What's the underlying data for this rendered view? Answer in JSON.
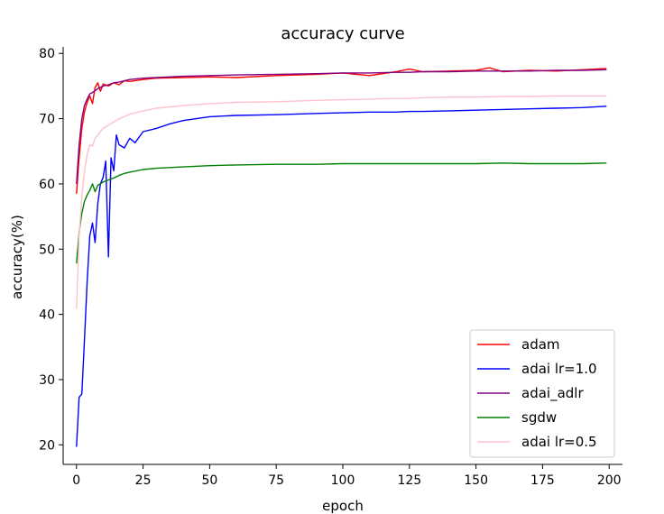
{
  "chart_data": {
    "type": "line",
    "title": "accuracy curve",
    "xlabel": "epoch",
    "ylabel": "accuracy(%)",
    "xlim": [
      -5,
      205
    ],
    "ylim": [
      17,
      81
    ],
    "xticks": [
      0,
      25,
      50,
      75,
      100,
      125,
      150,
      175,
      200
    ],
    "yticks": [
      20,
      30,
      40,
      50,
      60,
      70,
      80
    ],
    "legend_position": "bottom-right",
    "grid": false,
    "series": [
      {
        "name": "adam",
        "color": "#ff0000",
        "x": [
          0,
          1,
          2,
          3,
          4,
          5,
          6,
          7,
          8,
          9,
          10,
          12,
          14,
          16,
          18,
          20,
          25,
          30,
          40,
          50,
          60,
          75,
          90,
          100,
          110,
          120,
          125,
          130,
          140,
          150,
          155,
          160,
          170,
          180,
          190,
          199
        ],
        "y": [
          58.5,
          64.0,
          68.5,
          71.0,
          72.5,
          73.5,
          72.3,
          74.8,
          75.5,
          74.2,
          75.3,
          75.0,
          75.5,
          75.2,
          75.8,
          75.7,
          76.0,
          76.2,
          76.3,
          76.4,
          76.3,
          76.6,
          76.8,
          77.0,
          76.6,
          77.2,
          77.6,
          77.2,
          77.3,
          77.4,
          77.8,
          77.2,
          77.4,
          77.3,
          77.5,
          77.7
        ]
      },
      {
        "name": "adai lr=1.0",
        "color": "#0000ff",
        "x": [
          0,
          1,
          2,
          3,
          4,
          5,
          6,
          7,
          8,
          9,
          10,
          11,
          12,
          13,
          14,
          15,
          16,
          18,
          20,
          22,
          25,
          30,
          35,
          40,
          45,
          50,
          60,
          75,
          90,
          100,
          110,
          120,
          125,
          130,
          140,
          150,
          160,
          170,
          180,
          190,
          199
        ],
        "y": [
          19.7,
          27.3,
          27.8,
          36.0,
          45.0,
          52.0,
          54.0,
          51.0,
          57.0,
          60.0,
          61.0,
          63.5,
          48.8,
          64.0,
          62.0,
          67.5,
          66.0,
          65.5,
          67.0,
          66.3,
          68.0,
          68.5,
          69.2,
          69.7,
          70.0,
          70.3,
          70.5,
          70.6,
          70.8,
          70.9,
          71.0,
          71.0,
          71.1,
          71.1,
          71.2,
          71.3,
          71.4,
          71.5,
          71.6,
          71.7,
          71.9
        ]
      },
      {
        "name": "adai_adlr",
        "color": "#800080",
        "x": [
          0,
          1,
          2,
          3,
          4,
          5,
          6,
          7,
          8,
          9,
          10,
          12,
          14,
          16,
          18,
          20,
          25,
          30,
          40,
          50,
          60,
          75,
          90,
          100,
          110,
          120,
          125,
          130,
          140,
          150,
          160,
          170,
          180,
          190,
          199
        ],
        "y": [
          60.0,
          66.0,
          70.0,
          72.0,
          73.0,
          73.8,
          74.0,
          74.3,
          74.6,
          74.8,
          75.0,
          75.2,
          75.5,
          75.6,
          75.8,
          76.0,
          76.2,
          76.3,
          76.5,
          76.6,
          76.7,
          76.8,
          76.9,
          77.0,
          77.0,
          77.1,
          77.1,
          77.2,
          77.2,
          77.3,
          77.3,
          77.3,
          77.4,
          77.4,
          77.5
        ]
      },
      {
        "name": "sgdw",
        "color": "#008000",
        "x": [
          0,
          1,
          2,
          3,
          4,
          5,
          6,
          7,
          8,
          9,
          10,
          12,
          14,
          16,
          18,
          20,
          25,
          30,
          40,
          50,
          60,
          75,
          90,
          100,
          110,
          120,
          125,
          130,
          140,
          150,
          160,
          170,
          180,
          190,
          199
        ],
        "y": [
          47.8,
          52.5,
          55.5,
          57.3,
          58.3,
          59.0,
          60.0,
          58.8,
          59.8,
          60.0,
          60.3,
          60.6,
          60.9,
          61.3,
          61.6,
          61.8,
          62.2,
          62.4,
          62.6,
          62.8,
          62.9,
          63.0,
          63.0,
          63.1,
          63.1,
          63.1,
          63.1,
          63.1,
          63.1,
          63.1,
          63.2,
          63.1,
          63.1,
          63.1,
          63.2
        ]
      },
      {
        "name": "adai lr=0.5",
        "color": "#ffc0cb",
        "x": [
          0,
          1,
          2,
          3,
          4,
          5,
          6,
          7,
          8,
          9,
          10,
          12,
          14,
          16,
          18,
          20,
          25,
          30,
          40,
          50,
          60,
          75,
          90,
          100,
          110,
          120,
          125,
          130,
          140,
          150,
          160,
          170,
          180,
          190,
          199
        ],
        "y": [
          40.8,
          52.0,
          58.0,
          62.0,
          64.5,
          66.0,
          65.8,
          67.0,
          67.5,
          68.0,
          68.5,
          69.0,
          69.5,
          70.0,
          70.3,
          70.7,
          71.2,
          71.6,
          72.0,
          72.3,
          72.5,
          72.6,
          72.8,
          72.9,
          73.0,
          73.1,
          73.1,
          73.2,
          73.3,
          73.3,
          73.4,
          73.4,
          73.5,
          73.5,
          73.5
        ]
      }
    ]
  }
}
